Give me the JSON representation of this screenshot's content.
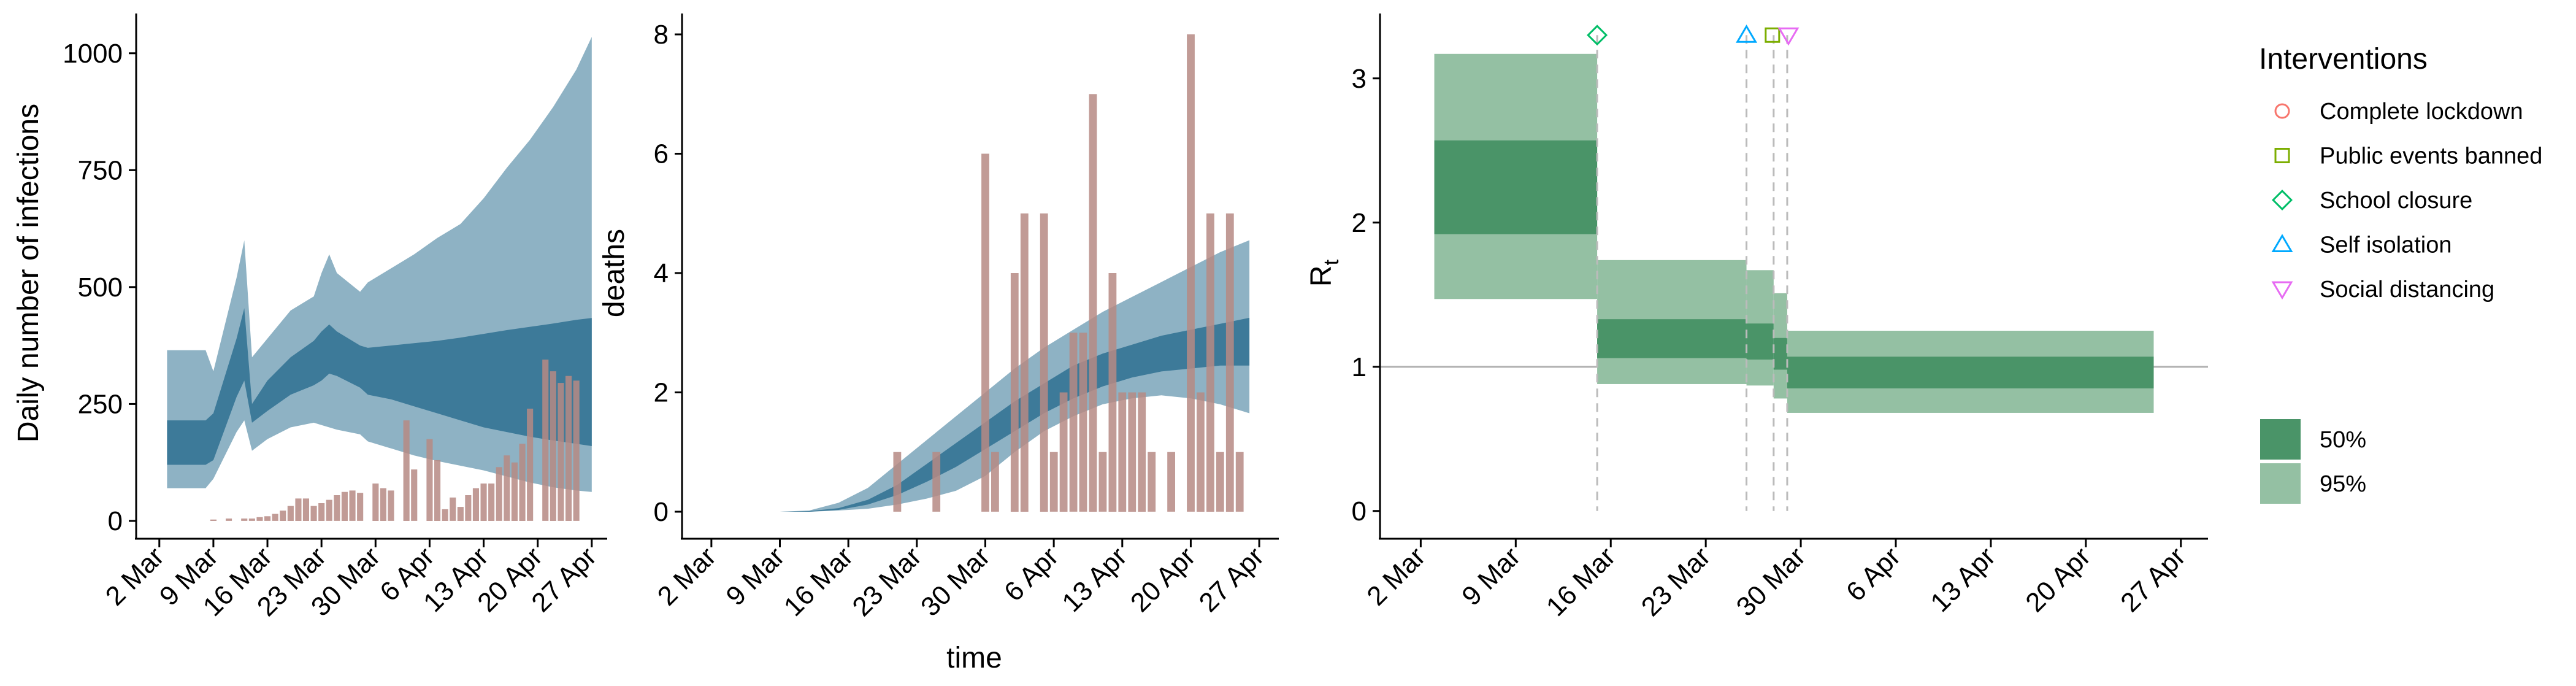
{
  "colors": {
    "infection_band_outer": "#8EB2C4",
    "infection_band_inner": "#3D7A99",
    "bars": "#B68A84",
    "rt_band_outer": "#94C0A3",
    "rt_band_inner": "#4A9468",
    "rt_line": "#2E6B45",
    "intervention_line": "#BBBBBB",
    "reference_line": "#B0B0B0",
    "complete_lockdown": "#F8766D",
    "public_events_banned": "#7CAE00",
    "school_closure": "#00BE67",
    "self_isolation": "#00A9FF",
    "social_distancing": "#E76BF3"
  },
  "chart_data": [
    {
      "id": "infections",
      "type": "area",
      "ylabel": "Daily number of infections",
      "xlabel": "",
      "x_ticks": [
        "2 Mar",
        "9 Mar",
        "16 Mar",
        "23 Mar",
        "30 Mar",
        "6 Apr",
        "13 Apr",
        "20 Apr",
        "27 Apr"
      ],
      "x_range": [
        "2020-02-28",
        "2020-04-29"
      ],
      "y_ticks": [
        0,
        250,
        500,
        750,
        1000
      ],
      "ylim": [
        -25,
        1085
      ],
      "series": [
        {
          "band": "95%",
          "x": [
            "2020-03-03",
            "2020-03-08",
            "2020-03-09",
            "2020-03-12",
            "2020-03-13",
            "2020-03-14",
            "2020-03-16",
            "2020-03-19",
            "2020-03-22",
            "2020-03-23",
            "2020-03-24",
            "2020-03-25",
            "2020-03-28",
            "2020-03-29",
            "2020-04-01",
            "2020-04-04",
            "2020-04-07",
            "2020-04-10",
            "2020-04-13",
            "2020-04-16",
            "2020-04-19",
            "2020-04-22",
            "2020-04-25",
            "2020-04-27"
          ],
          "upper": [
            365,
            365,
            320,
            520,
            600,
            350,
            390,
            450,
            480,
            530,
            570,
            530,
            490,
            510,
            540,
            570,
            605,
            635,
            690,
            755,
            815,
            885,
            965,
            1035
          ],
          "lower": [
            70,
            70,
            90,
            190,
            215,
            150,
            175,
            200,
            210,
            205,
            200,
            195,
            185,
            170,
            155,
            140,
            128,
            118,
            108,
            95,
            82,
            72,
            65,
            62
          ]
        },
        {
          "band": "50%",
          "x": [
            "2020-03-03",
            "2020-03-08",
            "2020-03-09",
            "2020-03-12",
            "2020-03-13",
            "2020-03-14",
            "2020-03-16",
            "2020-03-19",
            "2020-03-22",
            "2020-03-23",
            "2020-03-24",
            "2020-03-25",
            "2020-03-28",
            "2020-03-29",
            "2020-04-01",
            "2020-04-04",
            "2020-04-07",
            "2020-04-10",
            "2020-04-13",
            "2020-04-16",
            "2020-04-19",
            "2020-04-22",
            "2020-04-25",
            "2020-04-27"
          ],
          "upper": [
            215,
            215,
            230,
            390,
            455,
            250,
            300,
            350,
            385,
            405,
            420,
            405,
            375,
            370,
            375,
            380,
            385,
            392,
            400,
            408,
            415,
            422,
            430,
            434
          ],
          "lower": [
            120,
            120,
            130,
            265,
            300,
            210,
            235,
            270,
            290,
            300,
            315,
            310,
            285,
            270,
            260,
            245,
            230,
            215,
            200,
            190,
            180,
            172,
            165,
            160
          ]
        }
      ],
      "bars": {
        "x": [
          "2020-03-09",
          "2020-03-10",
          "2020-03-11",
          "2020-03-12",
          "2020-03-13",
          "2020-03-14",
          "2020-03-15",
          "2020-03-16",
          "2020-03-17",
          "2020-03-18",
          "2020-03-19",
          "2020-03-20",
          "2020-03-21",
          "2020-03-22",
          "2020-03-23",
          "2020-03-24",
          "2020-03-25",
          "2020-03-26",
          "2020-03-27",
          "2020-03-28",
          "2020-03-29",
          "2020-03-30",
          "2020-03-31",
          "2020-04-01",
          "2020-04-02",
          "2020-04-03",
          "2020-04-04",
          "2020-04-05",
          "2020-04-06",
          "2020-04-07",
          "2020-04-08",
          "2020-04-09",
          "2020-04-10",
          "2020-04-11",
          "2020-04-12",
          "2020-04-13",
          "2020-04-14",
          "2020-04-15",
          "2020-04-16",
          "2020-04-17",
          "2020-04-18",
          "2020-04-19",
          "2020-04-20",
          "2020-04-21",
          "2020-04-22",
          "2020-04-23",
          "2020-04-24",
          "2020-04-25"
        ],
        "values": [
          3,
          0,
          5,
          0,
          5,
          5,
          8,
          10,
          15,
          22,
          32,
          48,
          48,
          32,
          38,
          45,
          55,
          62,
          65,
          60,
          0,
          80,
          70,
          65,
          0,
          215,
          110,
          0,
          175,
          130,
          25,
          50,
          30,
          55,
          70,
          80,
          80,
          115,
          140,
          125,
          165,
          240,
          0,
          345,
          320,
          295,
          310,
          300
        ]
      }
    },
    {
      "id": "deaths",
      "type": "area",
      "ylabel": "deaths",
      "xlabel": "time",
      "x_ticks": [
        "2 Mar",
        "9 Mar",
        "16 Mar",
        "23 Mar",
        "30 Mar",
        "6 Apr",
        "13 Apr",
        "20 Apr",
        "27 Apr"
      ],
      "x_range": [
        "2020-02-28",
        "2020-04-29"
      ],
      "y_ticks": [
        0,
        2,
        4,
        6,
        8
      ],
      "ylim": [
        -0.35,
        8.35
      ],
      "series": [
        {
          "band": "95%",
          "x": [
            "2020-03-09",
            "2020-03-12",
            "2020-03-15",
            "2020-03-18",
            "2020-03-21",
            "2020-03-24",
            "2020-03-27",
            "2020-03-30",
            "2020-04-02",
            "2020-04-05",
            "2020-04-08",
            "2020-04-11",
            "2020-04-14",
            "2020-04-17",
            "2020-04-20",
            "2020-04-23",
            "2020-04-26"
          ],
          "upper": [
            0,
            0.02,
            0.15,
            0.4,
            0.8,
            1.2,
            1.6,
            2.0,
            2.4,
            2.75,
            3.05,
            3.35,
            3.6,
            3.85,
            4.1,
            4.35,
            4.55
          ],
          "lower": [
            0,
            0,
            0.02,
            0.05,
            0.12,
            0.22,
            0.35,
            0.6,
            1.0,
            1.35,
            1.6,
            1.8,
            1.9,
            1.95,
            1.9,
            1.8,
            1.65
          ]
        },
        {
          "band": "50%",
          "x": [
            "2020-03-09",
            "2020-03-12",
            "2020-03-15",
            "2020-03-18",
            "2020-03-21",
            "2020-03-24",
            "2020-03-27",
            "2020-03-30",
            "2020-04-02",
            "2020-04-05",
            "2020-04-08",
            "2020-04-11",
            "2020-04-14",
            "2020-04-17",
            "2020-04-20",
            "2020-04-23",
            "2020-04-26"
          ],
          "upper": [
            0,
            0.01,
            0.06,
            0.2,
            0.45,
            0.8,
            1.15,
            1.5,
            1.85,
            2.15,
            2.45,
            2.65,
            2.8,
            2.95,
            3.05,
            3.15,
            3.25
          ],
          "lower": [
            0,
            0,
            0.03,
            0.12,
            0.28,
            0.5,
            0.75,
            1.05,
            1.35,
            1.65,
            1.9,
            2.1,
            2.25,
            2.35,
            2.4,
            2.45,
            2.45
          ]
        }
      ],
      "bars": {
        "x": [
          "2020-03-21",
          "2020-03-25",
          "2020-03-30",
          "2020-03-31",
          "2020-04-02",
          "2020-04-03",
          "2020-04-05",
          "2020-04-06",
          "2020-04-07",
          "2020-04-08",
          "2020-04-09",
          "2020-04-10",
          "2020-04-11",
          "2020-04-12",
          "2020-04-13",
          "2020-04-14",
          "2020-04-15",
          "2020-04-16",
          "2020-04-18",
          "2020-04-20",
          "2020-04-21",
          "2020-04-22",
          "2020-04-23",
          "2020-04-24",
          "2020-04-25"
        ],
        "values": [
          1,
          1,
          6,
          1,
          4,
          5,
          5,
          1,
          2,
          3,
          3,
          7,
          1,
          4,
          2,
          2,
          2,
          1,
          1,
          8,
          2,
          5,
          1,
          5,
          1
        ]
      }
    },
    {
      "id": "rt",
      "type": "area",
      "ylabel": "R",
      "ylabel_sub": "t",
      "xlabel": "",
      "x_ticks": [
        "2 Mar",
        "9 Mar",
        "16 Mar",
        "23 Mar",
        "30 Mar",
        "6 Apr",
        "13 Apr",
        "20 Apr",
        "27 Apr"
      ],
      "x_range": [
        "2020-02-28",
        "2020-04-29"
      ],
      "y_ticks": [
        0,
        1,
        2,
        3
      ],
      "ylim": [
        -0.15,
        3.45
      ],
      "reference_line": 1,
      "steps": [
        {
          "start": "2020-03-03",
          "end": "2020-03-15",
          "mean": 2.25,
          "lo50": 1.92,
          "hi50": 2.57,
          "lo95": 1.47,
          "hi95": 3.17
        },
        {
          "start": "2020-03-15",
          "end": "2020-03-26",
          "mean": 1.2,
          "lo50": 1.06,
          "hi50": 1.33,
          "lo95": 0.88,
          "hi95": 1.74
        },
        {
          "start": "2020-03-26",
          "end": "2020-03-28",
          "mean": 1.17,
          "lo50": 1.05,
          "hi50": 1.3,
          "lo95": 0.87,
          "hi95": 1.67
        },
        {
          "start": "2020-03-28",
          "end": "2020-03-29",
          "mean": 1.12,
          "lo50": 0.98,
          "hi50": 1.2,
          "lo95": 0.78,
          "hi95": 1.51
        },
        {
          "start": "2020-03-29",
          "end": "2020-04-25",
          "mean": 1.02,
          "lo50": 0.85,
          "hi50": 1.07,
          "lo95": 0.68,
          "hi95": 1.25
        }
      ],
      "interventions": [
        {
          "name": "School closure",
          "date": "2020-03-15",
          "marker": "diamond",
          "color_key": "school_closure"
        },
        {
          "name": "Self isolation",
          "date": "2020-03-26",
          "marker": "triangle-up",
          "color_key": "self_isolation"
        },
        {
          "name": "Public events banned",
          "date": "2020-03-28",
          "marker": "square",
          "color_key": "public_events_banned"
        },
        {
          "name": "Social distancing",
          "date": "2020-03-29",
          "marker": "triangle-down",
          "color_key": "social_distancing"
        }
      ],
      "legend": {
        "title": "Interventions",
        "items": [
          {
            "label": "Complete lockdown",
            "marker": "circle",
            "color_key": "complete_lockdown"
          },
          {
            "label": "Public events banned",
            "marker": "square",
            "color_key": "public_events_banned"
          },
          {
            "label": "School closure",
            "marker": "diamond",
            "color_key": "school_closure"
          },
          {
            "label": "Self isolation",
            "marker": "triangle-up",
            "color_key": "self_isolation"
          },
          {
            "label": "Social distancing",
            "marker": "triangle-down",
            "color_key": "social_distancing"
          }
        ],
        "bands": [
          {
            "label": "50%",
            "color_key": "rt_band_inner"
          },
          {
            "label": "95%",
            "color_key": "rt_band_outer"
          }
        ]
      }
    }
  ]
}
